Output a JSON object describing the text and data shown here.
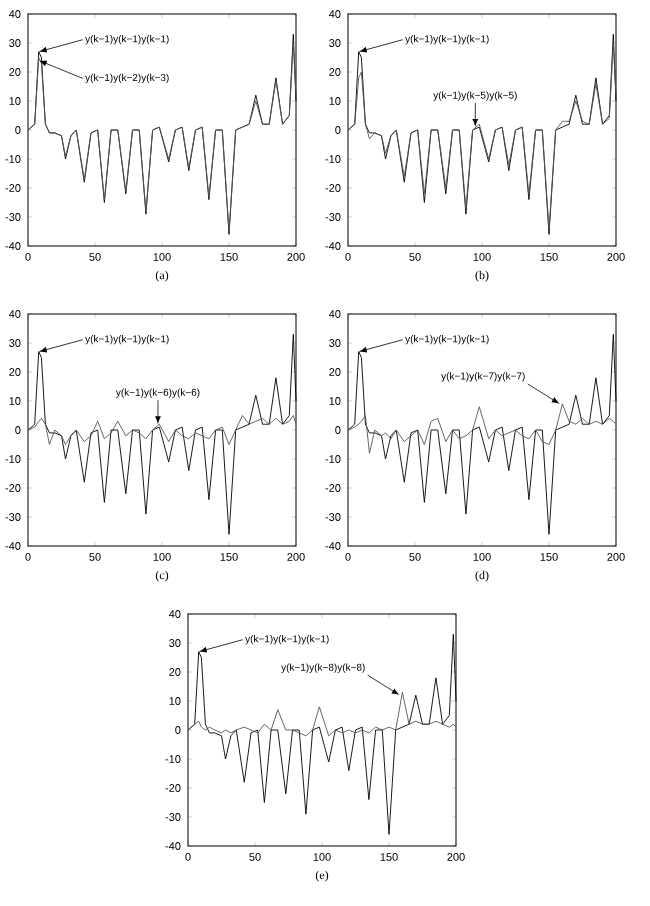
{
  "chart_data": [
    {
      "type": "line",
      "title": "(a)",
      "xlim": [
        0,
        200
      ],
      "ylim": [
        -40,
        40
      ],
      "xticks": [
        0,
        50,
        100,
        150,
        200
      ],
      "yticks": [
        -40,
        -30,
        -20,
        -10,
        0,
        10,
        20,
        30,
        40
      ],
      "x": [
        0,
        5,
        8,
        10,
        13,
        16,
        20,
        25,
        28,
        32,
        36,
        42,
        47,
        52,
        57,
        62,
        67,
        73,
        78,
        83,
        88,
        93,
        98,
        105,
        110,
        115,
        120,
        125,
        130,
        135,
        140,
        145,
        150,
        155,
        160,
        165,
        170,
        175,
        180,
        185,
        190,
        195,
        198,
        200
      ],
      "series": [
        {
          "color": "#000000",
          "values": [
            0,
            2,
            27,
            25,
            2,
            -1,
            -1,
            -2,
            -10,
            -2,
            0,
            -18,
            -1,
            0,
            -25,
            0,
            0,
            -22,
            0,
            0,
            -29,
            0,
            1,
            -11,
            0,
            1,
            -14,
            0,
            1,
            -24,
            0,
            0,
            -36,
            0,
            1,
            2,
            12,
            2,
            2,
            18,
            2,
            5,
            33,
            10
          ]
        },
        {
          "color": "#555555",
          "values": [
            0,
            2,
            25,
            23,
            2,
            -1,
            -1,
            -2,
            -9,
            -2,
            0,
            -17,
            -1,
            0,
            -24,
            0,
            0,
            -21,
            0,
            0,
            -28,
            0,
            1,
            -10,
            0,
            1,
            -13,
            0,
            1,
            -23,
            0,
            0,
            -35,
            0,
            1,
            2,
            10,
            2,
            2,
            17,
            2,
            5,
            30,
            12
          ]
        }
      ],
      "annotations": [
        {
          "text": "y(k−1)y(k−1)y(k−1)",
          "x": 8,
          "y": 27
        },
        {
          "text": "y(k−1)y(k−2)y(k−3)",
          "x": 8,
          "y": 24
        }
      ]
    },
    {
      "type": "line",
      "title": "(b)",
      "xlim": [
        0,
        200
      ],
      "ylim": [
        -40,
        40
      ],
      "xticks": [
        0,
        50,
        100,
        150,
        200
      ],
      "yticks": [
        -40,
        -30,
        -20,
        -10,
        0,
        10,
        20,
        30,
        40
      ],
      "x": [
        0,
        5,
        8,
        10,
        13,
        16,
        20,
        25,
        28,
        32,
        36,
        42,
        47,
        52,
        57,
        62,
        67,
        73,
        78,
        83,
        88,
        93,
        98,
        105,
        110,
        115,
        120,
        125,
        130,
        135,
        140,
        145,
        150,
        155,
        160,
        165,
        170,
        175,
        180,
        185,
        190,
        195,
        198,
        200
      ],
      "series": [
        {
          "color": "#000000",
          "values": [
            0,
            2,
            27,
            25,
            2,
            -1,
            -1,
            -2,
            -10,
            -2,
            0,
            -18,
            -1,
            0,
            -25,
            0,
            0,
            -22,
            0,
            0,
            -29,
            0,
            1,
            -11,
            0,
            1,
            -14,
            0,
            1,
            -24,
            0,
            0,
            -36,
            0,
            1,
            2,
            12,
            2,
            2,
            18,
            2,
            5,
            33,
            10
          ]
        },
        {
          "color": "#555555",
          "values": [
            0,
            2,
            18,
            20,
            2,
            -3,
            -1,
            -2,
            -8,
            -2,
            0,
            -16,
            -1,
            0,
            -22,
            0,
            0,
            -20,
            0,
            0,
            -27,
            0,
            2,
            -10,
            0,
            1,
            -12,
            0,
            1,
            -22,
            0,
            0,
            -34,
            0,
            3,
            3,
            10,
            3,
            2,
            16,
            2,
            4,
            30,
            12
          ]
        }
      ],
      "annotations": [
        {
          "text": "y(k−1)y(k−1)y(k−1)",
          "x": 8,
          "y": 27
        },
        {
          "text": "y(k−1)y(k−5)y(k−5)",
          "x": 95,
          "y": 1
        }
      ]
    },
    {
      "type": "line",
      "title": "(c)",
      "xlim": [
        0,
        200
      ],
      "ylim": [
        -40,
        40
      ],
      "xticks": [
        0,
        50,
        100,
        150,
        200
      ],
      "yticks": [
        -40,
        -30,
        -20,
        -10,
        0,
        10,
        20,
        30,
        40
      ],
      "x": [
        0,
        5,
        8,
        10,
        13,
        16,
        20,
        25,
        28,
        32,
        36,
        42,
        47,
        52,
        57,
        62,
        67,
        73,
        78,
        83,
        88,
        93,
        98,
        105,
        110,
        115,
        120,
        125,
        130,
        135,
        140,
        145,
        150,
        155,
        160,
        165,
        170,
        175,
        180,
        185,
        190,
        195,
        198,
        200
      ],
      "series": [
        {
          "color": "#000000",
          "values": [
            0,
            2,
            27,
            25,
            2,
            -1,
            -1,
            -2,
            -10,
            -2,
            0,
            -18,
            -1,
            0,
            -25,
            0,
            0,
            -22,
            0,
            0,
            -29,
            0,
            1,
            -11,
            0,
            1,
            -14,
            0,
            1,
            -24,
            0,
            0,
            -36,
            0,
            1,
            2,
            12,
            2,
            2,
            18,
            2,
            5,
            33,
            10
          ]
        },
        {
          "color": "#555555",
          "values": [
            0,
            1,
            3,
            4,
            2,
            -5,
            0,
            -2,
            -5,
            -2,
            0,
            -4,
            -2,
            3,
            -3,
            -1,
            3,
            -2,
            0,
            -1,
            -3,
            0,
            2,
            -4,
            0,
            -2,
            -3,
            -1,
            -2,
            -3,
            0,
            1,
            -5,
            0,
            5,
            2,
            3,
            4,
            2,
            4,
            2,
            3,
            5,
            2
          ]
        }
      ],
      "annotations": [
        {
          "text": "y(k−1)y(k−1)y(k−1)",
          "x": 8,
          "y": 27
        },
        {
          "text": "y(k−1)y(k−6)y(k−6)",
          "x": 97,
          "y": 2
        }
      ]
    },
    {
      "type": "line",
      "title": "(d)",
      "xlim": [
        0,
        200
      ],
      "ylim": [
        -40,
        40
      ],
      "xticks": [
        0,
        50,
        100,
        150,
        200
      ],
      "yticks": [
        -40,
        -30,
        -20,
        -10,
        0,
        10,
        20,
        30,
        40
      ],
      "x": [
        0,
        5,
        8,
        10,
        13,
        16,
        20,
        25,
        28,
        32,
        36,
        42,
        47,
        52,
        57,
        62,
        67,
        73,
        78,
        83,
        88,
        93,
        98,
        105,
        110,
        115,
        120,
        125,
        130,
        135,
        140,
        145,
        150,
        155,
        160,
        165,
        170,
        175,
        180,
        185,
        190,
        195,
        198,
        200
      ],
      "series": [
        {
          "color": "#000000",
          "values": [
            0,
            2,
            27,
            25,
            2,
            -1,
            -1,
            -2,
            -10,
            -2,
            0,
            -18,
            -1,
            0,
            -25,
            0,
            0,
            -22,
            0,
            0,
            -29,
            0,
            1,
            -11,
            0,
            1,
            -14,
            0,
            1,
            -24,
            0,
            0,
            -36,
            0,
            1,
            2,
            12,
            2,
            2,
            18,
            2,
            5,
            33,
            10
          ]
        },
        {
          "color": "#555555",
          "values": [
            0,
            1,
            2,
            3,
            5,
            -8,
            0,
            -2,
            -1,
            -3,
            0,
            -4,
            -2,
            0,
            -5,
            3,
            4,
            -4,
            0,
            -3,
            -2,
            0,
            8,
            -3,
            0,
            -2,
            -1,
            0,
            -2,
            -3,
            0,
            -4,
            -5,
            0,
            9,
            3,
            2,
            4,
            2,
            3,
            2,
            4,
            3,
            2
          ]
        }
      ],
      "annotations": [
        {
          "text": "y(k−1)y(k−1)y(k−1)",
          "x": 8,
          "y": 27
        },
        {
          "text": "y(k−1)y(k−7)y(k−7)",
          "x": 158,
          "y": 9
        }
      ]
    },
    {
      "type": "line",
      "title": "(e)",
      "xlim": [
        0,
        200
      ],
      "ylim": [
        -40,
        40
      ],
      "xticks": [
        0,
        50,
        100,
        150,
        200
      ],
      "yticks": [
        -40,
        -30,
        -20,
        -10,
        0,
        10,
        20,
        30,
        40
      ],
      "x": [
        0,
        5,
        8,
        10,
        13,
        16,
        20,
        25,
        28,
        32,
        36,
        42,
        47,
        52,
        57,
        62,
        67,
        73,
        78,
        83,
        88,
        93,
        98,
        105,
        110,
        115,
        120,
        125,
        130,
        135,
        140,
        145,
        150,
        155,
        160,
        165,
        170,
        175,
        180,
        185,
        190,
        195,
        198,
        200
      ],
      "series": [
        {
          "color": "#000000",
          "values": [
            0,
            2,
            27,
            25,
            2,
            -1,
            -1,
            -2,
            -10,
            -2,
            0,
            -18,
            -1,
            0,
            -25,
            0,
            0,
            -22,
            0,
            0,
            -29,
            0,
            1,
            -11,
            0,
            1,
            -14,
            0,
            1,
            -24,
            0,
            0,
            -36,
            0,
            1,
            2,
            12,
            2,
            2,
            18,
            2,
            5,
            33,
            10
          ]
        },
        {
          "color": "#555555",
          "values": [
            0,
            2,
            3,
            1,
            0,
            1,
            0,
            -1,
            0,
            -1,
            0,
            1,
            0,
            -1,
            2,
            0,
            7,
            0,
            0,
            -1,
            -2,
            0,
            8,
            -2,
            0,
            -1,
            0,
            -1,
            0,
            -1,
            1,
            0,
            1,
            0,
            13,
            2,
            3,
            2,
            2,
            3,
            2,
            1,
            2,
            1
          ]
        }
      ],
      "annotations": [
        {
          "text": "y(k−1)y(k−1)y(k−1)",
          "x": 8,
          "y": 27
        },
        {
          "text": "y(k−1)y(k−8)y(k−8)",
          "x": 158,
          "y": 12
        }
      ]
    }
  ]
}
